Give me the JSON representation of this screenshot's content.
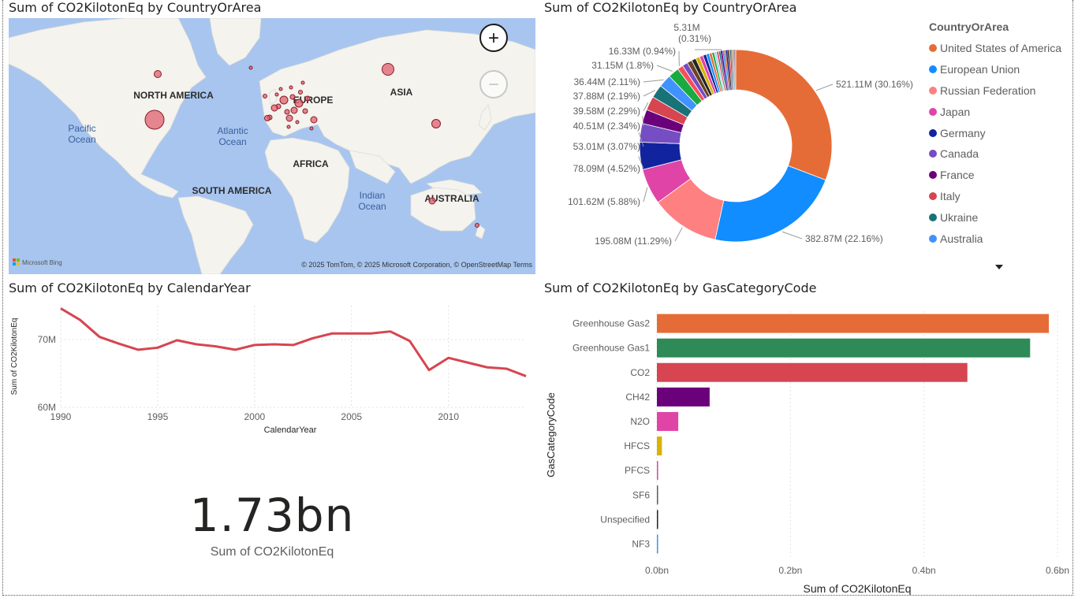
{
  "titles": {
    "map": "Sum of CO2KilotonEq by CountryOrArea",
    "donut": "Sum of CO2KilotonEq by CountryOrArea",
    "line": "Sum of CO2KilotonEq by CalendarYear",
    "bar": "Sum of CO2KilotonEq by GasCategoryCode"
  },
  "map": {
    "labels": {
      "north_america": "NORTH AMERICA",
      "europe": "EUROPE",
      "asia": "ASIA",
      "africa": "AFRICA",
      "south_america": "SOUTH AMERICA",
      "australia": "AUSTRALIA",
      "pacific": "Pacific\nOcean",
      "atlantic": "Atlantic\nOcean",
      "indian": "Indian\nOcean"
    },
    "attribution": "© 2025 TomTom, © 2025 Microsoft Corporation, © OpenStreetMap  Terms",
    "bing": "Microsoft Bing",
    "zoom_in": "+",
    "zoom_out": "−"
  },
  "kpi": {
    "value": "1.73bn",
    "label": "Sum of CO2KilotonEq"
  },
  "legend": {
    "title": "CountryOrArea",
    "items": [
      {
        "name": "United States of America",
        "color": "#E66C37"
      },
      {
        "name": "European Union",
        "color": "#118DFF"
      },
      {
        "name": "Russian Federation",
        "color": "#FF8080"
      },
      {
        "name": "Japan",
        "color": "#E044A7"
      },
      {
        "name": "Germany",
        "color": "#12239E"
      },
      {
        "name": "Canada",
        "color": "#744EC2"
      },
      {
        "name": "France",
        "color": "#6B007B"
      },
      {
        "name": "Italy",
        "color": "#D64550"
      },
      {
        "name": "Ukraine",
        "color": "#197278"
      },
      {
        "name": "Australia",
        "color": "#4092FF"
      }
    ]
  },
  "chart_data": [
    {
      "type": "pie",
      "title": "Sum of CO2KilotonEq by CountryOrArea",
      "donut": true,
      "legend_position": "right",
      "slices": [
        {
          "name": "United States of America",
          "value": 521.11,
          "label": "521.11M (30.16%)",
          "color": "#E66C37"
        },
        {
          "name": "European Union",
          "value": 382.87,
          "label": "382.87M (22.16%)",
          "color": "#118DFF"
        },
        {
          "name": "Russian Federation",
          "value": 195.08,
          "label": "195.08M (11.29%)",
          "color": "#FF8080"
        },
        {
          "name": "Japan",
          "value": 101.62,
          "label": "101.62M (5.88%)",
          "color": "#E044A7"
        },
        {
          "name": "Germany",
          "value": 78.09,
          "label": "78.09M (4.52%)",
          "color": "#12239E"
        },
        {
          "name": "Canada",
          "value": 53.01,
          "label": "53.01M (3.07%)",
          "color": "#744EC2"
        },
        {
          "name": "France",
          "value": 40.51,
          "label": "40.51M (2.34%)",
          "color": "#6B007B"
        },
        {
          "name": "Italy",
          "value": 39.58,
          "label": "39.58M (2.29%)",
          "color": "#D64550"
        },
        {
          "name": "Ukraine",
          "value": 37.88,
          "label": "37.88M (2.19%)",
          "color": "#197278"
        },
        {
          "name": "Australia",
          "value": 36.44,
          "label": "36.44M (2.11%)",
          "color": "#4092FF"
        },
        {
          "name": "",
          "value": 31.15,
          "label": "31.15M (1.8%)",
          "color": "#1AAB40"
        },
        {
          "name": "",
          "value": 16.33,
          "label": "16.33M (0.94%)",
          "color": "#F64F5C"
        },
        {
          "name": "",
          "value": 15.5,
          "label": "",
          "color": "#744EC2"
        },
        {
          "name": "",
          "value": 14.0,
          "label": "",
          "color": "#6B4226"
        },
        {
          "name": "",
          "value": 12.5,
          "label": "",
          "color": "#252423"
        },
        {
          "name": "",
          "value": 11.5,
          "label": "",
          "color": "#D9B300"
        },
        {
          "name": "",
          "value": 10.5,
          "label": "",
          "color": "#E044A7"
        },
        {
          "name": "",
          "value": 9.5,
          "label": "",
          "color": "#12239E"
        },
        {
          "name": "",
          "value": 8.5,
          "label": "",
          "color": "#118DFF"
        },
        {
          "name": "",
          "value": 7.8,
          "label": "",
          "color": "#E66C37"
        },
        {
          "name": "",
          "value": 7.0,
          "label": "",
          "color": "#1AAB40"
        },
        {
          "name": "",
          "value": 6.5,
          "label": "",
          "color": "#A0D1FF"
        },
        {
          "name": "",
          "value": 6.0,
          "label": "",
          "color": "#D64550"
        },
        {
          "name": "",
          "value": 5.6,
          "label": "",
          "color": "#197278"
        },
        {
          "name": "",
          "value": 5.31,
          "label": "5.31M (0.31%)",
          "color": "#6B007B"
        },
        {
          "name": "",
          "value": 4.9,
          "label": "",
          "color": "#4092FF"
        },
        {
          "name": "",
          "value": 4.6,
          "label": "",
          "color": "#E66C37"
        },
        {
          "name": "",
          "value": 4.3,
          "label": "",
          "color": "#12239E"
        },
        {
          "name": "",
          "value": 4.0,
          "label": "",
          "color": "#252423"
        },
        {
          "name": "",
          "value": 3.6,
          "label": "",
          "color": "#F64F5C"
        },
        {
          "name": "",
          "value": 3.2,
          "label": "",
          "color": "#197278"
        },
        {
          "name": "",
          "value": 2.9,
          "label": "",
          "color": "#744EC2"
        },
        {
          "name": "",
          "value": 2.6,
          "label": "",
          "color": "#D9B300"
        },
        {
          "name": "",
          "value": 2.3,
          "label": "",
          "color": "#118DFF"
        },
        {
          "name": "",
          "value": 2.0,
          "label": "",
          "color": "#6B4226"
        },
        {
          "name": "",
          "value": 1.7,
          "label": "",
          "color": "#E044A7"
        },
        {
          "name": "",
          "value": 1.45,
          "label": "",
          "color": "#1AAB40"
        }
      ]
    },
    {
      "type": "line",
      "title": "Sum of CO2KilotonEq by CalendarYear",
      "xlabel": "CalendarYear",
      "ylabel": "Sum of CO2KilotonEq",
      "x": [
        1990,
        1991,
        1992,
        1993,
        1994,
        1995,
        1996,
        1997,
        1998,
        1999,
        2000,
        2001,
        2002,
        2003,
        2004,
        2005,
        2006,
        2007,
        2008,
        2009,
        2010,
        2011,
        2012,
        2013,
        2014
      ],
      "series": [
        {
          "values": [
            74.6,
            72.9,
            70.4,
            69.4,
            68.5,
            68.8,
            69.9,
            69.3,
            69.0,
            68.5,
            69.2,
            69.3,
            69.2,
            70.2,
            70.9,
            70.9,
            70.9,
            71.2,
            69.8,
            65.5,
            67.3,
            66.6,
            65.9,
            65.7,
            64.6
          ],
          "color": "#D64550"
        }
      ],
      "xlim": [
        1990,
        2014
      ],
      "ylim": [
        60,
        75
      ],
      "xticks": [
        "1990",
        "1995",
        "2000",
        "2005",
        "2010"
      ],
      "yticks": [
        {
          "value": 60,
          "label": "60M"
        },
        {
          "value": 70,
          "label": "70M"
        }
      ],
      "grid": true
    },
    {
      "type": "bar",
      "orientation": "horizontal",
      "title": "Sum of CO2KilotonEq by GasCategoryCode",
      "xlabel": "Sum of CO2KilotonEq",
      "ylabel": "GasCategoryCode",
      "categories": [
        "Greenhouse Gas2",
        "Greenhouse Gas1",
        "CO2",
        "CH42",
        "N2O",
        "HFCS",
        "PFCS",
        "SF6",
        "Unspecified",
        "NF3"
      ],
      "values": [
        0.587,
        0.559,
        0.465,
        0.079,
        0.032,
        0.0075,
        0.0018,
        0.0012,
        0.0012,
        0.0008
      ],
      "colors": [
        "#E66C37",
        "#2E8B57",
        "#D64550",
        "#6B007B",
        "#E044A7",
        "#D9B300",
        "#E044A7",
        "#605E5C",
        "#252423",
        "#4092FF"
      ],
      "xlim": [
        0,
        0.6
      ],
      "xticks": [
        {
          "value": 0,
          "label": "0.0bn"
        },
        {
          "value": 0.2,
          "label": "0.2bn"
        },
        {
          "value": 0.4,
          "label": "0.4bn"
        },
        {
          "value": 0.6,
          "label": "0.6bn"
        }
      ],
      "grid": true
    }
  ]
}
